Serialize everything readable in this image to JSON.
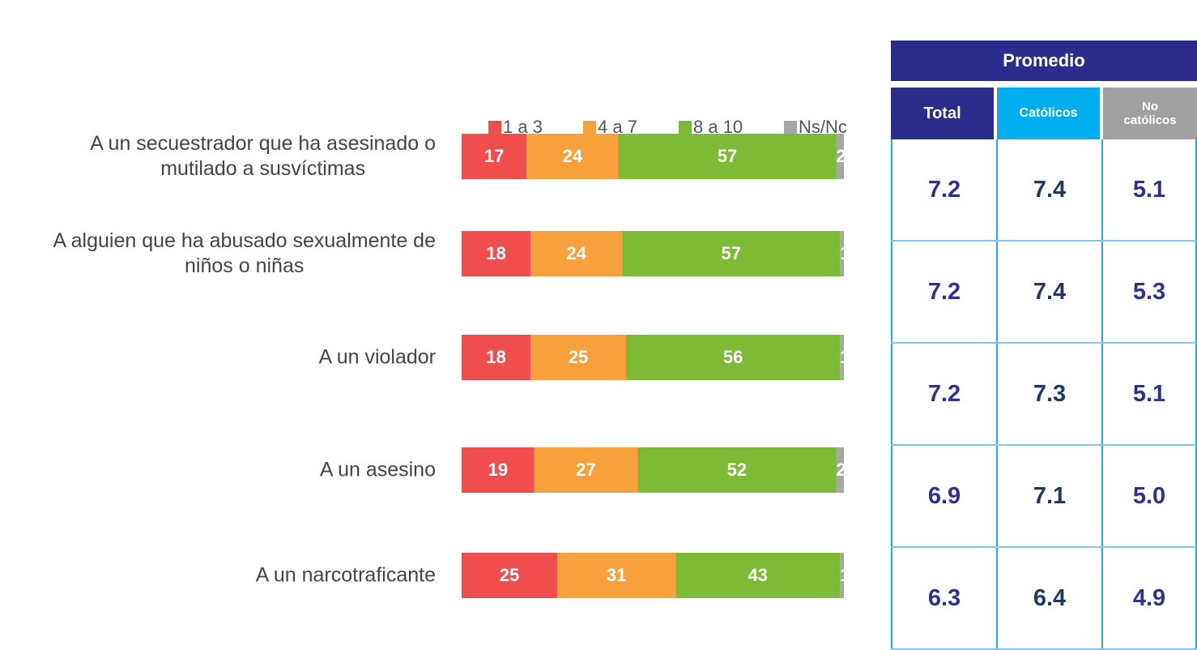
{
  "chart_data": {
    "type": "bar",
    "orientation": "horizontal",
    "stacked": true,
    "categories": [
      "A un secuestrador que ha asesinado o\nmutilado a susvíctimas",
      "A alguien que ha abusado sexualmente de\nniños o niñas",
      "A un violador",
      "A un asesino",
      "A un narcotraficante"
    ],
    "series": [
      {
        "name": "1 a 3",
        "color": "#f04e4e",
        "values": [
          17,
          18,
          18,
          19,
          25
        ]
      },
      {
        "name": "4 a 7",
        "color": "#f7a03c",
        "values": [
          24,
          24,
          25,
          27,
          31
        ]
      },
      {
        "name": "8 a 10",
        "color": "#7dba35",
        "values": [
          57,
          57,
          56,
          52,
          43
        ]
      },
      {
        "name": "Ns/Nc",
        "color": "#a6a6a6",
        "values": [
          2,
          1,
          1,
          2,
          1
        ]
      }
    ],
    "legend": "top"
  },
  "table": {
    "header": "Promedio",
    "columns": [
      "Total",
      "Católicos",
      "No católicos"
    ],
    "rows": [
      [
        "7.2",
        "7.4",
        "5.1"
      ],
      [
        "7.2",
        "7.4",
        "5.3"
      ],
      [
        "7.2",
        "7.3",
        "5.1"
      ],
      [
        "6.9",
        "7.1",
        "5.0"
      ],
      [
        "6.3",
        "6.4",
        "4.9"
      ]
    ]
  }
}
